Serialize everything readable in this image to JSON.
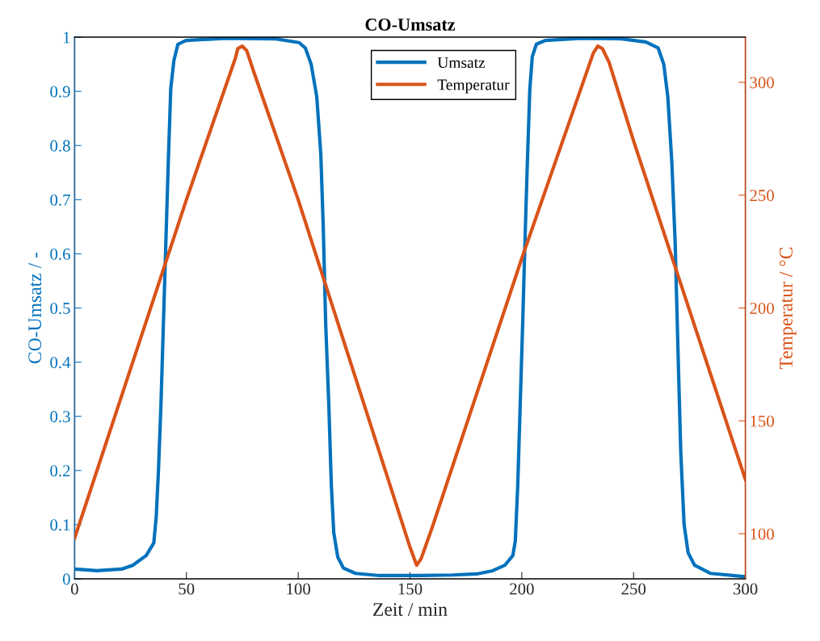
{
  "chart_data": {
    "type": "line",
    "title": "CO-Umsatz",
    "xlabel": "Zeit / min",
    "ylabel": "CO-Umsatz / -",
    "y2label": "Temperatur / °C",
    "xlim": [
      0,
      300
    ],
    "xticks": [
      0,
      50,
      100,
      150,
      200,
      250,
      300
    ],
    "ylim": [
      0,
      1
    ],
    "yticks": [
      {
        "value": 0,
        "label": "0"
      },
      0.1,
      0.2,
      0.3,
      0.4,
      0.5,
      0.6,
      0.7,
      0.8,
      0.9,
      {
        "value": 1,
        "label": "1"
      }
    ],
    "y2lim": [
      80,
      320
    ],
    "y2ticks": [
      100,
      150,
      200,
      250,
      300
    ],
    "grid": false,
    "legend": "top",
    "marker": "none",
    "line_style": "solid",
    "series": [
      {
        "name": "Umsatz",
        "color": "#0072bd",
        "x": [
          0,
          10,
          21,
          26,
          32,
          35.4,
          36.5,
          37.5,
          38.6,
          39.7,
          40.8,
          41.9,
          43,
          44.4,
          46.2,
          49.8,
          67.9,
          89.5,
          100.4,
          103.2,
          105.8,
          108.3,
          110.1,
          111.2,
          112.3,
          113.7,
          114.8,
          115.9,
          117.7,
          120.2,
          125.6,
          136.5,
          154.5,
          169,
          179.8,
          187,
          192.4,
          196,
          197.1,
          198.2,
          199.3,
          200.4,
          201.4,
          202.5,
          203.6,
          204.7,
          206.5,
          210.5,
          226.7,
          244.8,
          255.6,
          261,
          263.5,
          265.3,
          267.1,
          268.6,
          270,
          271.1,
          272.6,
          274.4,
          277.3,
          284.5,
          300
        ],
        "values": [
          0.018,
          0.015,
          0.018,
          0.025,
          0.043,
          0.066,
          0.115,
          0.2,
          0.32,
          0.47,
          0.62,
          0.77,
          0.905,
          0.957,
          0.987,
          0.994,
          0.998,
          0.997,
          0.99,
          0.98,
          0.95,
          0.89,
          0.785,
          0.65,
          0.47,
          0.32,
          0.175,
          0.085,
          0.04,
          0.02,
          0.01,
          0.006,
          0.006,
          0.007,
          0.009,
          0.015,
          0.025,
          0.043,
          0.07,
          0.174,
          0.323,
          0.472,
          0.62,
          0.77,
          0.905,
          0.964,
          0.987,
          0.994,
          0.998,
          0.997,
          0.991,
          0.98,
          0.95,
          0.89,
          0.77,
          0.62,
          0.4,
          0.234,
          0.1,
          0.048,
          0.025,
          0.01,
          0.004
        ]
      },
      {
        "name": "Temperatur",
        "color": "#d95319",
        "axis": "y2",
        "x": [
          0,
          5,
          50,
          72,
          73,
          75,
          77,
          80,
          100,
          150,
          153,
          155,
          160,
          200,
          232,
          234,
          236,
          239,
          250,
          300
        ],
        "values": [
          98,
          113,
          248,
          311,
          315,
          316,
          314,
          305,
          248,
          94,
          86,
          89,
          103,
          222,
          313,
          316,
          315,
          309,
          274,
          124
        ]
      }
    ]
  }
}
